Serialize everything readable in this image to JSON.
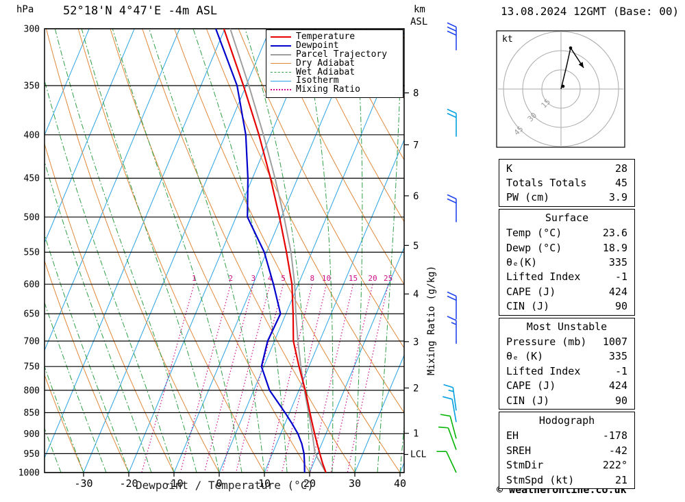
{
  "header": {
    "pressure_unit": "hPa",
    "title": "52°18'N 4°47'E -4m ASL",
    "km_label": "km",
    "asl_label": "ASL",
    "date": "13.08.2024 12GMT (Base: 00)"
  },
  "colors": {
    "temperature": "#e60000",
    "dewpoint": "#0000cc",
    "parcel": "#9e9e9e",
    "isotherm": "#29a3e3",
    "dry_adiabat": "#e0883a",
    "wet_adiabat": "#2f9e44",
    "mixing_ratio": "#cf0a86",
    "grid": "#000000"
  },
  "legend": {
    "items": [
      {
        "label": "Temperature",
        "color": "#e60000",
        "style": "solid",
        "width": 2
      },
      {
        "label": "Dewpoint",
        "color": "#0000cc",
        "style": "solid",
        "width": 2
      },
      {
        "label": "Parcel Trajectory",
        "color": "#9e9e9e",
        "style": "solid",
        "width": 2
      },
      {
        "label": "Dry Adiabat",
        "color": "#e0883a",
        "style": "solid",
        "width": 1
      },
      {
        "label": "Wet Adiabat",
        "color": "#2f9e44",
        "style": "dashed",
        "width": 1
      },
      {
        "label": "Isotherm",
        "color": "#29a3e3",
        "style": "solid",
        "width": 1
      },
      {
        "label": "Mixing Ratio",
        "color": "#cf0a86",
        "style": "dotted",
        "width": 2
      }
    ]
  },
  "axes": {
    "pressure_ticks": [
      300,
      350,
      400,
      450,
      500,
      550,
      600,
      650,
      700,
      750,
      800,
      850,
      900,
      950,
      1000
    ],
    "temp_ticks": [
      -30,
      -20,
      -10,
      0,
      10,
      20,
      30,
      40
    ],
    "xlabel": "Dewpoint / Temperature (°C)",
    "km_ticks": [
      1,
      2,
      3,
      4,
      5,
      6,
      7,
      8
    ],
    "mixing_ratio_label": "Mixing Ratio (g/kg)",
    "lcl_label": "LCL",
    "lcl_pressure_hPa": 952
  },
  "chart_data": {
    "type": "line",
    "variant": "skew-t-log-p-sounding",
    "title": "52°18'N 4°47'E -4m ASL",
    "xlabel": "Dewpoint / Temperature (°C)",
    "ylabel": "hPa",
    "pressure_axis_hPa": [
      300,
      1000
    ],
    "temp_axis_C": [
      -30,
      40
    ],
    "mixing_ratio_lines_g_kg": [
      1,
      2,
      3,
      4,
      5,
      8,
      10,
      15,
      20,
      25
    ],
    "series": [
      {
        "name": "Temperature",
        "color": "#e60000",
        "points_p_T": [
          [
            1000,
            23.6
          ],
          [
            975,
            22.0
          ],
          [
            950,
            20.5
          ],
          [
            925,
            19.0
          ],
          [
            900,
            17.5
          ],
          [
            875,
            16.0
          ],
          [
            850,
            14.5
          ],
          [
            800,
            11.4
          ],
          [
            750,
            7.8
          ],
          [
            700,
            4.2
          ],
          [
            650,
            1.6
          ],
          [
            600,
            -1.4
          ],
          [
            550,
            -5.6
          ],
          [
            500,
            -10.4
          ],
          [
            450,
            -16.0
          ],
          [
            400,
            -22.6
          ],
          [
            350,
            -30.6
          ],
          [
            300,
            -40.2
          ]
        ]
      },
      {
        "name": "Dewpoint",
        "color": "#0000cc",
        "points_p_T": [
          [
            1000,
            18.9
          ],
          [
            975,
            18.0
          ],
          [
            950,
            17.0
          ],
          [
            925,
            15.6
          ],
          [
            900,
            13.8
          ],
          [
            875,
            11.5
          ],
          [
            850,
            9.0
          ],
          [
            800,
            3.5
          ],
          [
            750,
            -0.5
          ],
          [
            700,
            -1.5
          ],
          [
            650,
            -1.2
          ],
          [
            600,
            -5.5
          ],
          [
            550,
            -10.5
          ],
          [
            500,
            -17.5
          ],
          [
            450,
            -21.0
          ],
          [
            400,
            -25.5
          ],
          [
            350,
            -32.0
          ],
          [
            300,
            -42.0
          ]
        ]
      },
      {
        "name": "Parcel Trajectory",
        "color": "#9e9e9e",
        "points_p_T": [
          [
            1000,
            23.6
          ],
          [
            960,
            20.3
          ],
          [
            945,
            19.2
          ],
          [
            900,
            17.0
          ],
          [
            850,
            14.2
          ],
          [
            800,
            11.2
          ],
          [
            750,
            8.2
          ],
          [
            700,
            5.2
          ],
          [
            650,
            2.2
          ],
          [
            600,
            -0.8
          ],
          [
            550,
            -4.6
          ],
          [
            500,
            -9.4
          ],
          [
            450,
            -15.0
          ],
          [
            400,
            -21.6
          ],
          [
            350,
            -29.4
          ],
          [
            300,
            -38.8
          ]
        ]
      }
    ]
  },
  "wind_barbs": {
    "barbs": [
      {
        "p": 318,
        "color": "#2244ee",
        "speed": 30,
        "tilt": 0
      },
      {
        "p": 402,
        "color": "#00a0e0",
        "speed": 20,
        "tilt": 0
      },
      {
        "p": 507,
        "color": "#2244ee",
        "speed": 20,
        "tilt": 0
      },
      {
        "p": 660,
        "color": "#2244ee",
        "speed": 20,
        "tilt": 0
      },
      {
        "p": 705,
        "color": "#2244ee",
        "speed": 15,
        "tilt": 0
      },
      {
        "p": 845,
        "color": "#00a0e0",
        "speed": 15,
        "tilt": -8
      },
      {
        "p": 872,
        "color": "#00a0e0",
        "speed": 10,
        "tilt": -10
      },
      {
        "p": 912,
        "color": "#00b400",
        "speed": 10,
        "tilt": -15
      },
      {
        "p": 940,
        "color": "#00b400",
        "speed": 10,
        "tilt": -20
      },
      {
        "p": 1000,
        "color": "#00b400",
        "speed": 10,
        "tilt": -25
      }
    ]
  },
  "hodograph": {
    "unit": "kt",
    "rings_kt": [
      "15",
      "30",
      "45"
    ],
    "trace": [
      [
        0,
        0
      ],
      [
        8,
        -33
      ],
      [
        14,
        -60
      ]
    ],
    "arrow": [
      [
        14,
        -60
      ],
      [
        33,
        -31
      ]
    ],
    "dots": [
      [
        14,
        -60
      ],
      [
        3,
        -4
      ]
    ]
  },
  "tables": [
    {
      "header": null,
      "rows": [
        [
          "K",
          "28"
        ],
        [
          "Totals Totals",
          "45"
        ],
        [
          "PW (cm)",
          "3.9"
        ]
      ]
    },
    {
      "header": "Surface",
      "rows": [
        [
          "Temp (°C)",
          "23.6"
        ],
        [
          "Dewp (°C)",
          "18.9"
        ],
        [
          "θₑ(K)",
          "335"
        ],
        [
          "Lifted Index",
          "-1"
        ],
        [
          "CAPE (J)",
          "424"
        ],
        [
          "CIN (J)",
          "90"
        ]
      ]
    },
    {
      "header": "Most Unstable",
      "rows": [
        [
          "Pressure (mb)",
          "1007"
        ],
        [
          "θₑ (K)",
          "335"
        ],
        [
          "Lifted Index",
          "-1"
        ],
        [
          "CAPE (J)",
          "424"
        ],
        [
          "CIN (J)",
          "90"
        ]
      ]
    },
    {
      "header": "Hodograph",
      "rows": [
        [
          "EH",
          "-178"
        ],
        [
          "SREH",
          "-42"
        ],
        [
          "StmDir",
          "222°"
        ],
        [
          "StmSpd (kt)",
          "21"
        ]
      ]
    }
  ],
  "footer": {
    "copyright": "© weatheronline.co.uk"
  }
}
